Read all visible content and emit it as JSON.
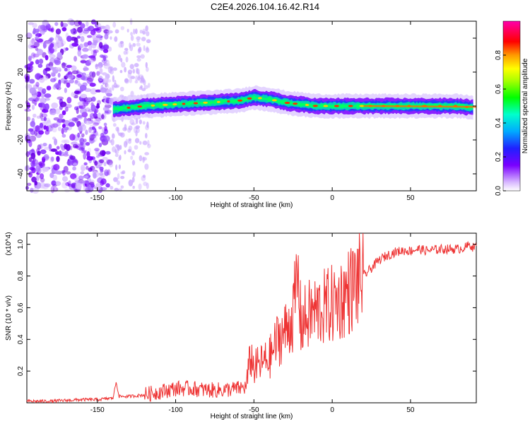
{
  "title": "C2E4.2026.104.16.42.R14",
  "chart_data": [
    {
      "type": "heatmap",
      "xlabel": "Height of straight line (km)",
      "ylabel": "Frequency (Hz)",
      "xlim": [
        -195,
        92
      ],
      "ylim": [
        -50,
        50
      ],
      "xticks": [
        -150,
        -100,
        -50,
        0,
        50
      ],
      "yticks": [
        -40,
        -20,
        0,
        20,
        40
      ],
      "colorbar": {
        "label": "Normalized spectral amplitude",
        "range": [
          0,
          1
        ],
        "ticks": [
          0.0,
          0.2,
          0.4,
          0.6,
          0.8
        ]
      },
      "ridge": {
        "x": [
          -140,
          -120,
          -100,
          -80,
          -60,
          -50,
          -40,
          -30,
          -20,
          -10,
          0,
          20,
          40,
          60,
          80,
          90
        ],
        "y": [
          -2,
          0,
          1,
          2,
          3,
          5,
          4,
          2,
          1,
          0,
          0,
          0,
          0,
          0,
          0,
          -1
        ]
      }
    },
    {
      "type": "line",
      "xlabel": "Height of straight line (km)",
      "ylabel": "SNR (10 * v/v)",
      "yscale_label": "(x10^4)",
      "xlim": [
        -195,
        92
      ],
      "ylim": [
        0,
        1.07
      ],
      "xticks": [
        -150,
        -100,
        -50,
        0,
        50
      ],
      "yticks": [
        0.2,
        0.4,
        0.6,
        0.8,
        1.0
      ],
      "grid": false,
      "series": [
        {
          "color": "#ee3333",
          "x": [
            -195,
            -180,
            -160,
            -150,
            -140,
            -138,
            -136,
            -130,
            -120,
            -110,
            -100,
            -90,
            -80,
            -70,
            -60,
            -55,
            -52,
            -50,
            -45,
            -40,
            -35,
            -30,
            -25,
            -22,
            -20,
            -15,
            -10,
            -5,
            0,
            5,
            10,
            15,
            20,
            25,
            30,
            35,
            40,
            45,
            50,
            55,
            60,
            70,
            80,
            85,
            88,
            90,
            92
          ],
          "y": [
            0.01,
            0.01,
            0.02,
            0.02,
            0.03,
            0.13,
            0.04,
            0.04,
            0.05,
            0.07,
            0.09,
            0.09,
            0.08,
            0.08,
            0.09,
            0.1,
            0.3,
            0.22,
            0.25,
            0.28,
            0.4,
            0.45,
            0.55,
            0.8,
            0.5,
            0.55,
            0.58,
            0.6,
            0.62,
            0.65,
            0.7,
            0.75,
            0.8,
            0.85,
            0.9,
            0.93,
            0.95,
            0.96,
            0.96,
            0.97,
            0.96,
            0.97,
            0.97,
            0.98,
            1.0,
            0.98,
            0.99
          ]
        }
      ]
    }
  ]
}
